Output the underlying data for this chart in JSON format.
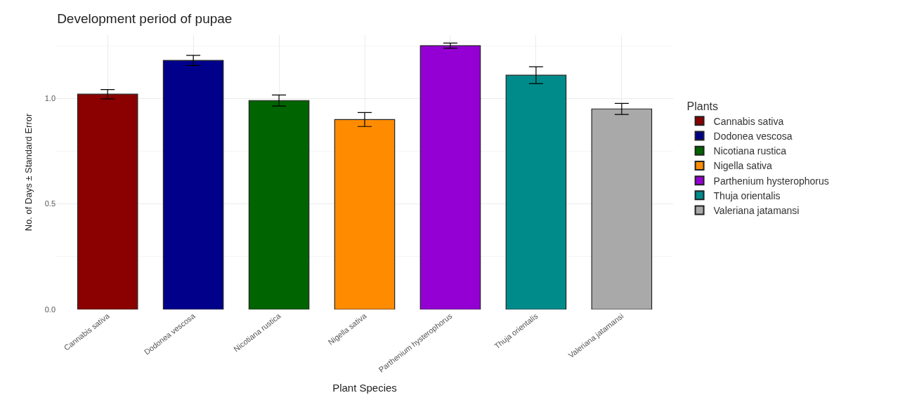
{
  "chart_data": {
    "type": "bar",
    "title": "Development period of pupae",
    "xlabel": "Plant Species",
    "ylabel": "No. of Days ± Standard Error",
    "legend_title": "Plants",
    "categories": [
      "Cannabis sativa",
      "Dodonea vescosa",
      "Nicotiana rustica",
      "Nigella sativa",
      "Parthenium hysterophorus",
      "Thuja orientalis",
      "Valeriana jatamansi"
    ],
    "series": [
      {
        "name": "Cannabis sativa",
        "color": "#8b0000",
        "values": [
          1.02,
          null,
          null,
          null,
          null,
          null,
          null
        ],
        "errors": [
          0.022,
          null,
          null,
          null,
          null,
          null,
          null
        ]
      },
      {
        "name": "Dodonea vescosa",
        "color": "#00008b",
        "values": [
          null,
          1.18,
          null,
          null,
          null,
          null,
          null
        ],
        "errors": [
          null,
          0.024,
          null,
          null,
          null,
          null,
          null
        ]
      },
      {
        "name": "Nicotiana rustica",
        "color": "#006400",
        "values": [
          null,
          null,
          0.99,
          null,
          null,
          null,
          null
        ],
        "errors": [
          null,
          null,
          0.026,
          null,
          null,
          null,
          null
        ]
      },
      {
        "name": "Nigella sativa",
        "color": "#ff8c00",
        "values": [
          null,
          null,
          null,
          0.9,
          null,
          null,
          null
        ],
        "errors": [
          null,
          null,
          null,
          0.033,
          null,
          null,
          null
        ]
      },
      {
        "name": "Parthenium hysterophorus",
        "color": "#9400d3",
        "values": [
          null,
          null,
          null,
          null,
          1.25,
          null,
          null
        ],
        "errors": [
          null,
          null,
          null,
          null,
          0.012,
          null,
          null
        ]
      },
      {
        "name": "Thuja orientalis",
        "color": "#008b8b",
        "values": [
          null,
          null,
          null,
          null,
          null,
          1.11,
          null
        ],
        "errors": [
          null,
          null,
          null,
          null,
          null,
          0.04,
          null
        ]
      },
      {
        "name": "Valeriana jatamansi",
        "color": "#a9a9a9",
        "values": [
          null,
          null,
          null,
          null,
          null,
          null,
          0.95
        ],
        "errors": [
          null,
          null,
          null,
          null,
          null,
          null,
          0.026
        ]
      }
    ],
    "ylim": [
      0,
      1.3
    ],
    "yticks": [
      {
        "value": 0,
        "label": "0.0"
      },
      {
        "value": 0.5,
        "label": "0.5"
      },
      {
        "value": 1,
        "label": "1.0"
      }
    ],
    "grid": true,
    "legend": "right"
  }
}
